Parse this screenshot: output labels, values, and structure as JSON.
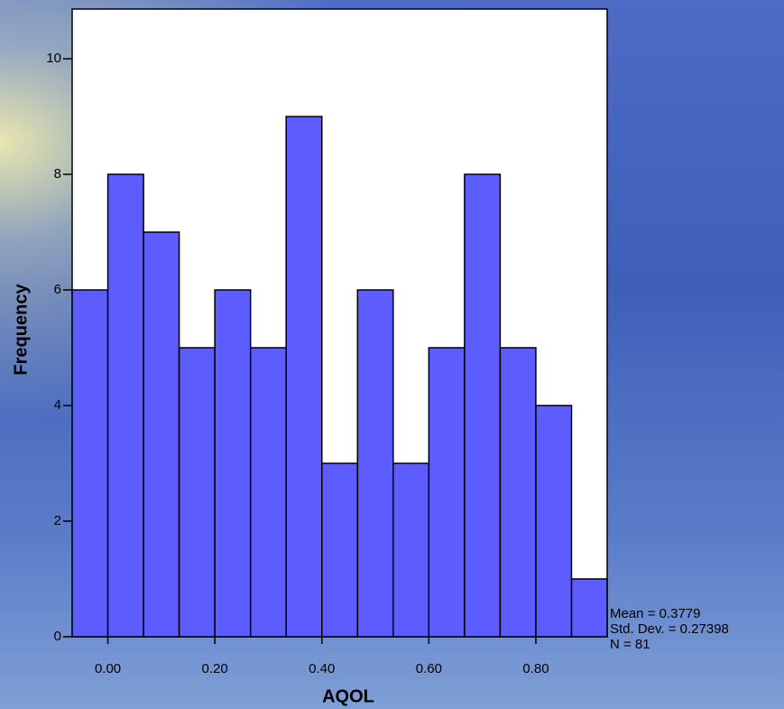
{
  "chart_data": {
    "type": "histogram",
    "x_label": "AQOL",
    "y_label": "Frequency",
    "bins": [
      -0.0667,
      0,
      0.0667,
      0.1333,
      0.2,
      0.2667,
      0.3333,
      0.4,
      0.4667,
      0.5333,
      0.6,
      0.6667,
      0.7333,
      0.8,
      0.8667,
      0.9333
    ],
    "values": [
      6,
      8,
      7,
      5,
      6,
      5,
      9,
      3,
      6,
      3,
      5,
      8,
      5,
      4,
      1
    ],
    "color": "#5c5cff",
    "xlim": [
      -0.0667,
      0.9333
    ],
    "xticks": [
      {
        "value": 0,
        "label": "0.00"
      },
      {
        "value": 0.2,
        "label": "0.20"
      },
      {
        "value": 0.4,
        "label": "0.40"
      },
      {
        "value": 0.6,
        "label": "0.60"
      },
      {
        "value": 0.8,
        "label": "0.80"
      }
    ],
    "ylim": [
      0,
      10.86
    ],
    "yticks": [
      0,
      2,
      4,
      6,
      8,
      10
    ],
    "annotations": [
      "Mean = 0.3779",
      "Std. Dev. = 0.27398",
      "N = 81"
    ]
  }
}
